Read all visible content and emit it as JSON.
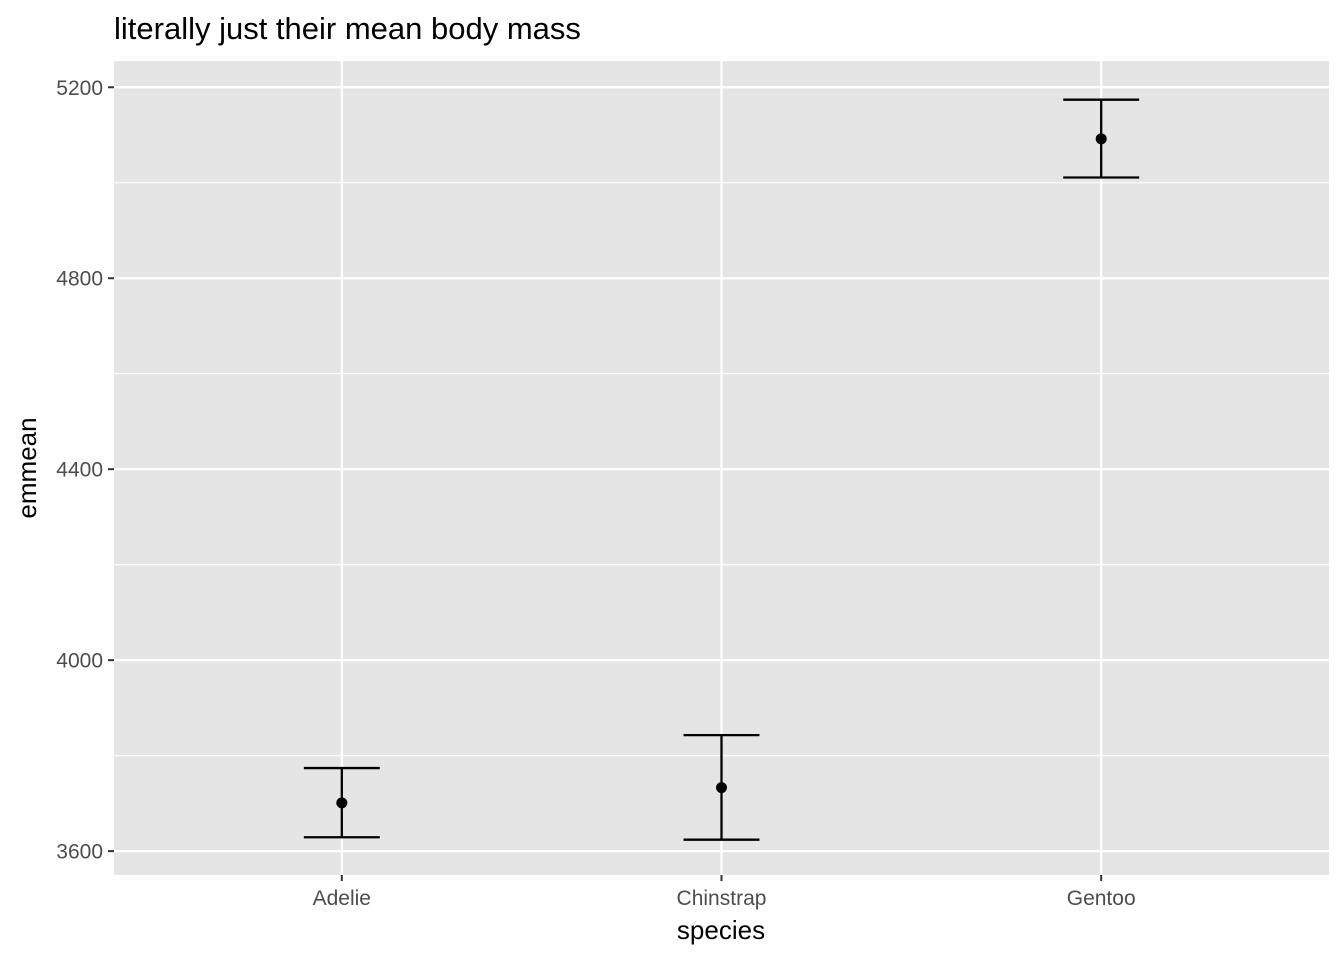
{
  "chart_data": {
    "type": "scatter",
    "title": "literally just their mean body mass",
    "xlabel": "species",
    "ylabel": "emmean",
    "categories": [
      "Adelie",
      "Chinstrap",
      "Gentoo"
    ],
    "series": [
      {
        "values": [
          3701,
          3733,
          5092
        ],
        "lower": [
          3629,
          3624,
          5011
        ],
        "upper": [
          3774,
          3843,
          5174
        ]
      }
    ],
    "ylim": [
      3550,
      5255
    ],
    "yticks": [
      3600,
      4000,
      4400,
      4800,
      5200
    ],
    "yticks_minor": [
      3800,
      4200,
      4600,
      5000
    ],
    "tick_labels": {
      "y": [
        "3600",
        "4000",
        "4400",
        "4800",
        "5200"
      ]
    },
    "grid": true,
    "legend": "none",
    "colors": {
      "panel": "#E5E5E5",
      "grid": "#FFFFFF",
      "mark": "#000000",
      "tick_text": "#4D4D4D"
    }
  }
}
